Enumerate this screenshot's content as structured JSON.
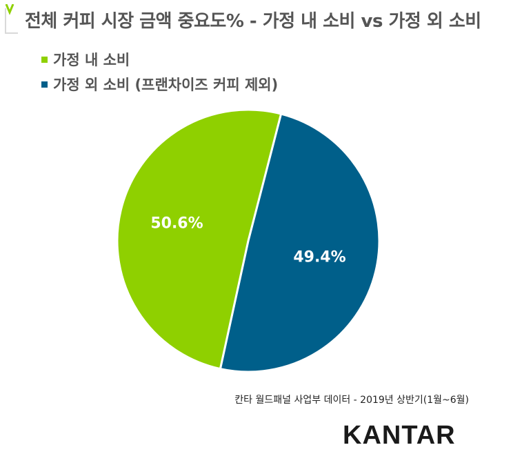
{
  "header": {
    "title": "전체 커피 시장 금액 중요도% -  가정 내 소비 vs 가정 외 소비"
  },
  "chart_data": {
    "type": "pie",
    "title": "전체 커피 시장 금액 중요도% -  가정 내 소비 vs 가정 외 소비",
    "legend_position": "top-left",
    "slices": [
      {
        "label": "가정 내 소비",
        "value": 50.6,
        "display": "50.6%",
        "color": "#8fd000"
      },
      {
        "label": "가정 외 소비 (프랜차이즈 커피 제외)",
        "value": 49.4,
        "display": "49.4%",
        "color": "#005f8a"
      }
    ]
  },
  "footer": {
    "source": "칸타 월드패널 사업부 데이터 - 2019년 상반기(1월~6월)",
    "logo": "KANTAR"
  },
  "colors": {
    "accent_green": "#8fd000",
    "title_gray": "#555555"
  }
}
